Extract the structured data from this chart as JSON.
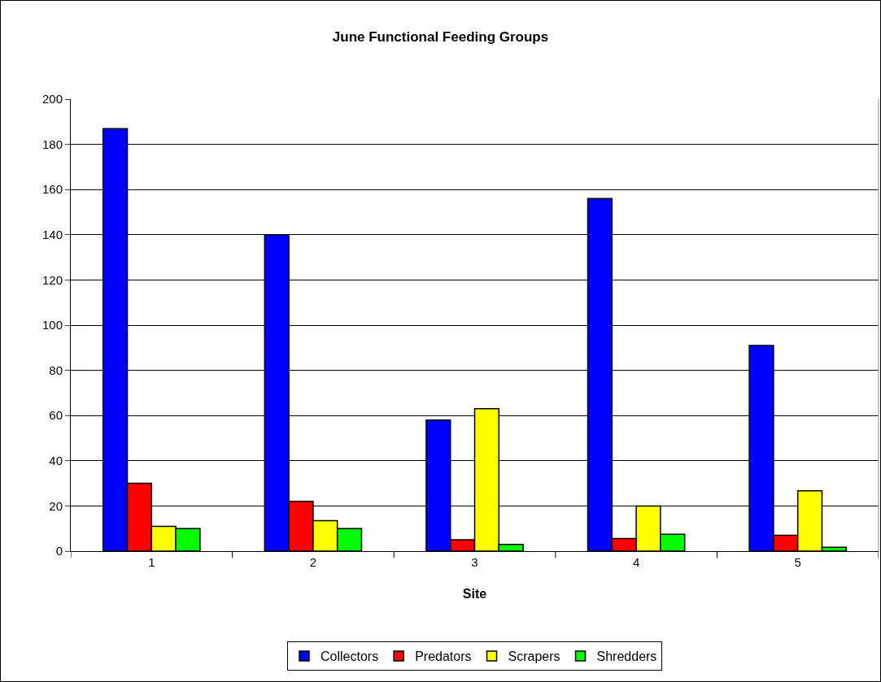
{
  "chart_data": {
    "type": "bar",
    "title": "June Functional Feeding Groups",
    "xlabel": "Site",
    "categories": [
      "1",
      "2",
      "3",
      "4",
      "5"
    ],
    "series": [
      {
        "name": "Collectors",
        "color": "#0000ff",
        "values": [
          187,
          140,
          58,
          156,
          91
        ]
      },
      {
        "name": "Predators",
        "color": "#ff0000",
        "values": [
          30,
          22,
          5,
          5.6,
          7
        ]
      },
      {
        "name": "Scrapers",
        "color": "#ffff00",
        "values": [
          11,
          13.5,
          63,
          20,
          26.7
        ]
      },
      {
        "name": "Shredders",
        "color": "#00ff00",
        "values": [
          10,
          10,
          3,
          7.5,
          1.7
        ]
      }
    ],
    "ylim": [
      0,
      200
    ],
    "yticks": [
      0,
      20,
      40,
      60,
      80,
      100,
      120,
      140,
      160,
      180,
      200
    ],
    "grid": "y",
    "legend": "bottom"
  }
}
